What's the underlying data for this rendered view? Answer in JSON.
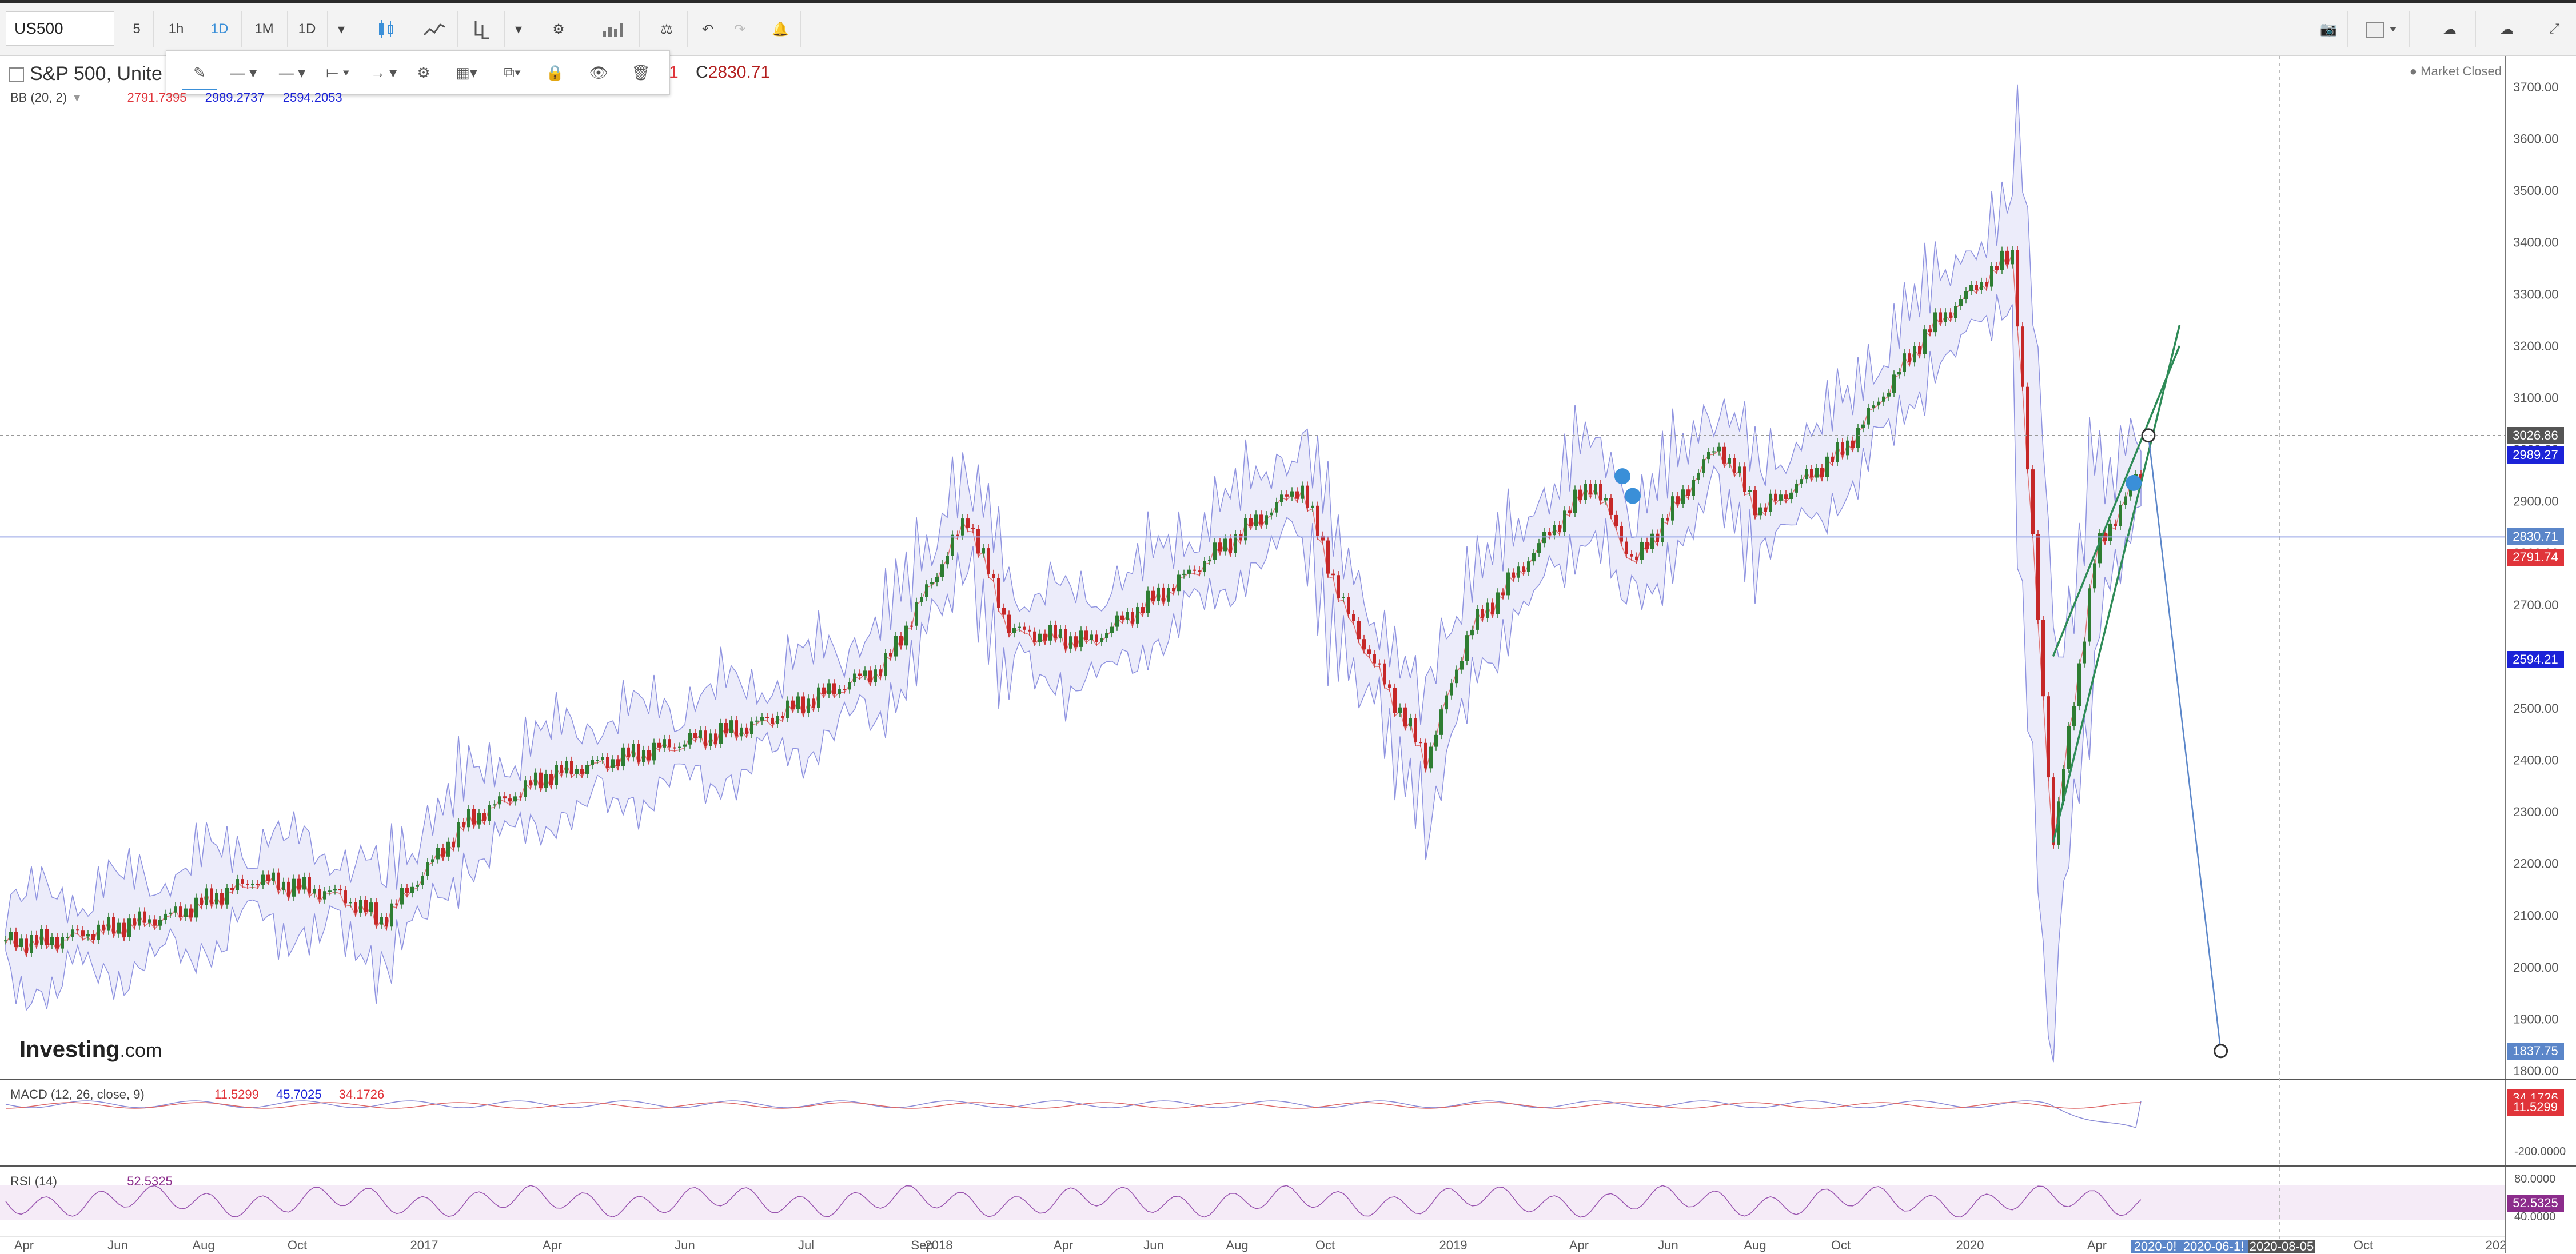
{
  "toolbar": {
    "symbol": "US500",
    "intervals": [
      "5",
      "1h",
      "1D",
      "1M",
      "1D"
    ],
    "active_interval": "1D"
  },
  "legend": {
    "title": "S&P 500, Unite",
    "ohlc_fragment": "1",
    "close_label": "C",
    "close_value": "2830.71",
    "bb_label": "BB (20, 2)",
    "bb_values": [
      "2791.7395",
      "2989.2737",
      "2594.2053"
    ],
    "market_status": "Market Closed"
  },
  "price_tags": [
    {
      "text": "3026.86",
      "color": "#555555",
      "price": 3026.86
    },
    {
      "text": "2989.27",
      "color": "#1c23d8",
      "price": 2989.27
    },
    {
      "text": "2830.71",
      "color": "#5b86c9",
      "price": 2830.71
    },
    {
      "text": "2791.74",
      "color": "#e0343a",
      "price": 2791.74
    },
    {
      "text": "2594.21",
      "color": "#1c23d8",
      "price": 2594.21
    },
    {
      "text": "1837.75",
      "color": "#5b86c9",
      "price": 1837.75
    }
  ],
  "watermark": {
    "brand": "Investing",
    "suffix": ".com"
  },
  "macd": {
    "label": "MACD (12, 26, close, 9)",
    "values": [
      "11.5299",
      "45.7025",
      "34.1726"
    ],
    "tags": [
      "34.1726",
      "11.5299"
    ],
    "ticks": [
      "-200.0000"
    ]
  },
  "rsi": {
    "label": "RSI (14)",
    "value": "52.5325",
    "ticks": [
      "80.0000",
      "40.0000"
    ],
    "tag": "52.5325"
  },
  "date_tags": [
    "2020-0!",
    "2020-06-1!",
    "2020-08-05"
  ],
  "chart_data": {
    "type": "line",
    "title": "S&P 500",
    "y_ticks": [
      1800,
      1900,
      2000,
      2100,
      2200,
      2300,
      2400,
      2500,
      2600,
      2700,
      2800,
      2900,
      3000,
      3100,
      3200,
      3300,
      3400,
      3500,
      3600,
      3700
    ],
    "ylim": [
      1800,
      3720
    ],
    "x_ticks": [
      "Apr",
      "Jun",
      "Aug",
      "Oct",
      "2017",
      "Apr",
      "Jun",
      "Jul",
      "Sep",
      "2018",
      "Apr",
      "Jun",
      "Aug",
      "Oct",
      "2019",
      "Apr",
      "Jun",
      "Aug",
      "Oct",
      "2020",
      "Apr",
      "Oct",
      "202"
    ],
    "series": [
      {
        "name": "S&P 500",
        "x": [
          "2016-03",
          "2016-06",
          "2016-08",
          "2016-10",
          "2016-11",
          "2017-01",
          "2017-03",
          "2017-06",
          "2017-08",
          "2017-11",
          "2018-01",
          "2018-02",
          "2018-04",
          "2018-06",
          "2018-09",
          "2018-10",
          "2018-12",
          "2019-01",
          "2019-04",
          "2019-05",
          "2019-07",
          "2019-08",
          "2019-10",
          "2019-12",
          "2020-02",
          "2020-03",
          "2020-04",
          "2020-05"
        ],
        "values": [
          2050,
          2100,
          2170,
          2140,
          2090,
          2280,
          2370,
          2430,
          2470,
          2580,
          2870,
          2650,
          2630,
          2740,
          2930,
          2700,
          2400,
          2650,
          2940,
          2780,
          3010,
          2880,
          3000,
          3230,
          3380,
          2240,
          2800,
          2950
        ]
      }
    ],
    "bollinger": {
      "period": 20,
      "stddev": 2,
      "last": {
        "basis": 2791.7395,
        "upper": 2989.2737,
        "lower": 2594.2053
      }
    },
    "close": 2830.71,
    "drawings": {
      "support_line": {
        "from": {
          "x": "2020-03",
          "y": 2240
        },
        "to": {
          "x": "2020-06",
          "y": 3240
        }
      },
      "trend_line": {
        "from": {
          "x": "2020-03",
          "y": 2600
        },
        "to": {
          "x": "2020-06",
          "y": 3200
        }
      },
      "projection_line": {
        "from": {
          "x": "2020-05",
          "y": 3026.86
        },
        "to": {
          "x": "2020-07",
          "y": 1837.75
        }
      }
    },
    "grid": false
  }
}
